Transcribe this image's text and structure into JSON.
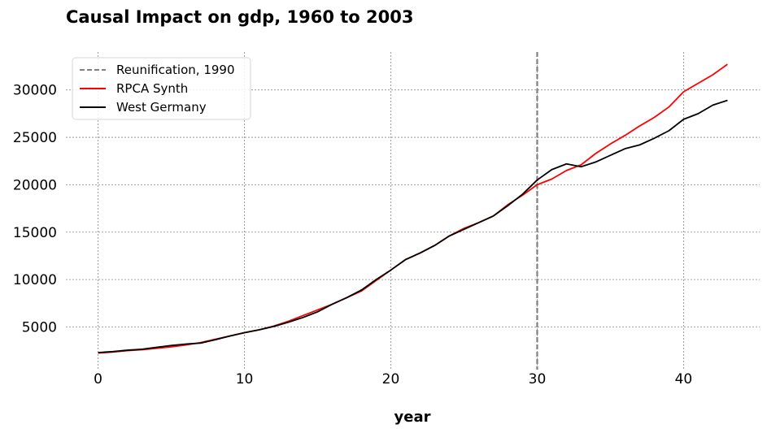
{
  "chart_data": {
    "type": "line",
    "title": "Causal Impact on gdp, 1960 to 2003",
    "xlabel": "year",
    "ylabel": "",
    "xlim": [
      -2.2,
      45.2
    ],
    "ylim": [
      500,
      34000
    ],
    "xticks": [
      0,
      10,
      20,
      30,
      40
    ],
    "yticks": [
      5000,
      10000,
      15000,
      20000,
      25000,
      30000
    ],
    "grid": true,
    "legend_position": "top-left",
    "intervention": {
      "label": "Reunification, 1990",
      "x": 30,
      "color": "#808080",
      "style": "dashed"
    },
    "x": [
      0,
      1,
      2,
      3,
      4,
      5,
      6,
      7,
      8,
      9,
      10,
      11,
      12,
      13,
      14,
      15,
      16,
      17,
      18,
      19,
      20,
      21,
      22,
      23,
      24,
      25,
      26,
      27,
      28,
      29,
      30,
      31,
      32,
      33,
      34,
      35,
      36,
      37,
      38,
      39,
      40,
      41,
      42,
      43
    ],
    "series": [
      {
        "name": "RPCA Synth",
        "color": "#ff0000",
        "values": [
          2250,
          2350,
          2500,
          2600,
          2750,
          2900,
          3100,
          3350,
          3700,
          4050,
          4400,
          4700,
          5100,
          5600,
          6200,
          6800,
          7400,
          8100,
          8800,
          9900,
          11000,
          12100,
          12800,
          13600,
          14600,
          15400,
          16000,
          16700,
          17900,
          18900,
          20000,
          20600,
          21500,
          22100,
          23300,
          24300,
          25200,
          26200,
          27100,
          28200,
          29800,
          30700,
          31600,
          32700
        ]
      },
      {
        "name": "West Germany",
        "color": "#000000",
        "values": [
          2300,
          2400,
          2550,
          2650,
          2850,
          3050,
          3200,
          3300,
          3650,
          4050,
          4400,
          4700,
          5050,
          5500,
          6000,
          6600,
          7400,
          8100,
          8900,
          10000,
          11000,
          12100,
          12800,
          13600,
          14600,
          15300,
          16000,
          16700,
          17800,
          19000,
          20500,
          21600,
          22200,
          21900,
          22400,
          23100,
          23800,
          24200,
          24900,
          25700,
          26900,
          27500,
          28400,
          28900
        ]
      }
    ]
  }
}
